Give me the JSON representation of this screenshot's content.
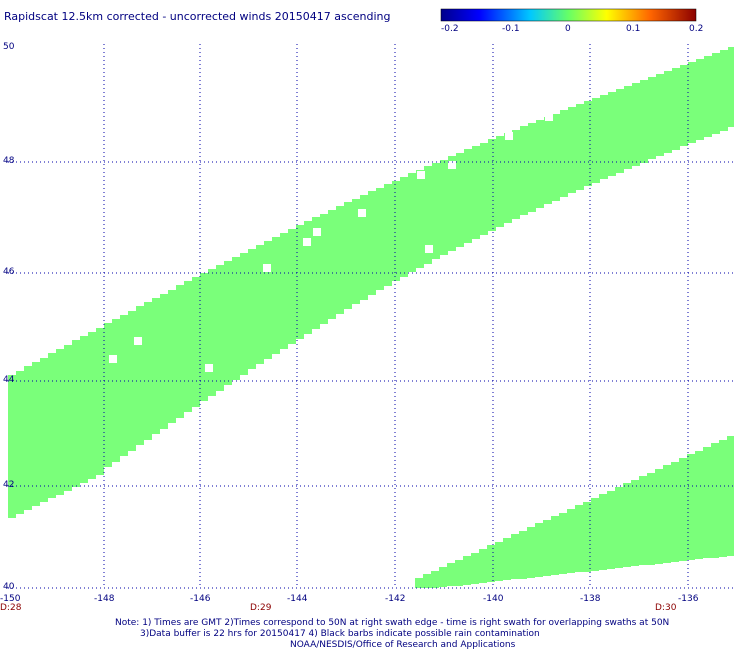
{
  "title": "Rapidscat 12.5km corrected - uncorrected winds 20150417 ascending",
  "colorbar": {
    "ticks": [
      "-0.2",
      "-0.1",
      "0",
      "0.1",
      "0.2"
    ],
    "min": -0.2,
    "max": 0.2
  },
  "axes": {
    "lon_labels": [
      "-150",
      "-148",
      "-146",
      "-144",
      "-142",
      "-140",
      "-138",
      "-136"
    ],
    "lat_labels": [
      "40",
      "42",
      "44",
      "46",
      "48",
      "50"
    ],
    "lon_range": [
      -150,
      -134.4
    ],
    "lat_range": [
      40,
      50
    ],
    "grid": "dotted",
    "time_labels": [
      "D:28",
      "D:29",
      "D:30"
    ]
  },
  "swath_color": "#7aff7a",
  "grid_color": "#0000aa",
  "time_color": "#8b0000",
  "notes": {
    "line1": "Note: 1) Times are GMT 2)Times correspond to 50N at right swath edge - time is right swath for overlapping swaths at 50N",
    "line2": "3)Data buffer is 22 hrs for 20150417 4) Black barbs indicate possible rain contamination",
    "line3": "NOAA/NESDIS/Office of Research and Applications"
  }
}
